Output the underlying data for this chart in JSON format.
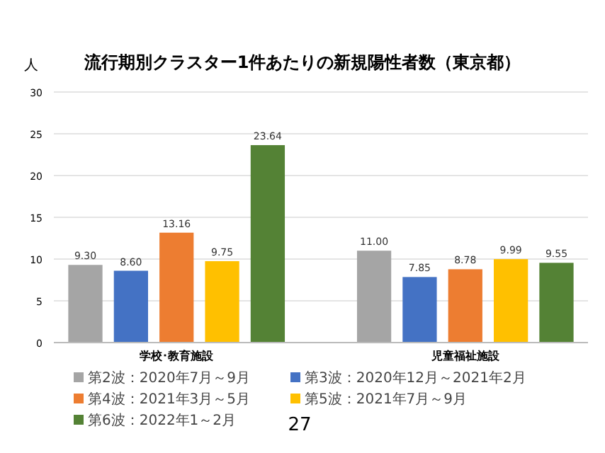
{
  "chart_data": {
    "type": "bar",
    "title": "流行期別クラスター1件あたりの新規陽性者数（東京都）",
    "ylabel": "人",
    "categories": [
      "学校･教育施設",
      "児童福祉施設"
    ],
    "series": [
      {
        "name": "第2波：2020年7月～9月",
        "color": "#a5a5a5",
        "values": [
          9.3,
          11.0
        ]
      },
      {
        "name": "第3波：2020年12月～2021年2月",
        "color": "#4472c4",
        "values": [
          8.6,
          7.85
        ]
      },
      {
        "name": "第4波：2021年3月～5月",
        "color": "#ed7d31",
        "values": [
          13.16,
          8.78
        ]
      },
      {
        "name": "第5波：2021年7月～9月",
        "color": "#ffc000",
        "values": [
          9.75,
          9.99
        ]
      },
      {
        "name": "第6波：2022年1～2月",
        "color": "#548235",
        "values": [
          23.64,
          9.55
        ]
      }
    ],
    "value_labels": [
      [
        "9.30",
        "11.00"
      ],
      [
        "8.60",
        "7.85"
      ],
      [
        "13.16",
        "8.78"
      ],
      [
        "9.75",
        "9.99"
      ],
      [
        "23.64",
        "9.55"
      ]
    ],
    "ylim": [
      0,
      30
    ],
    "yticks": [
      0,
      5,
      10,
      15,
      20,
      25,
      30
    ],
    "grid": "y",
    "legend": "bottom",
    "annotations": [
      "27"
    ]
  }
}
